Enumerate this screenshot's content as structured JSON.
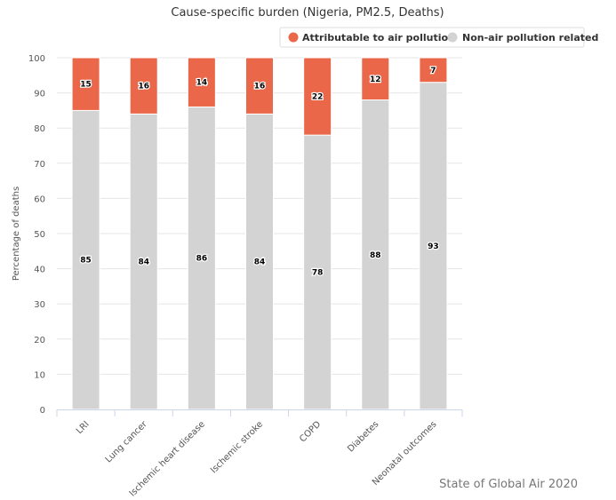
{
  "chart_data": {
    "type": "bar",
    "stacked": true,
    "title": "Cause-specific burden (Nigeria, PM2.5, Deaths)",
    "xlabel": "",
    "ylabel": "Percentage of deaths",
    "ylim": [
      0,
      100
    ],
    "yticks": [
      0,
      10,
      20,
      30,
      40,
      50,
      60,
      70,
      80,
      90,
      100
    ],
    "grid": true,
    "legend_position": "top-right",
    "categories": [
      "LRI",
      "Lung cancer",
      "Ischemic heart disease",
      "Ischemic stroke",
      "COPD",
      "Diabetes",
      "Neonatal outcomes"
    ],
    "series": [
      {
        "name": "Non-air pollution related",
        "color": "#d3d3d3",
        "values": [
          85,
          84,
          86,
          84,
          78,
          88,
          93
        ]
      },
      {
        "name": "Attributable to air pollution",
        "color": "#eb674a",
        "values": [
          15,
          16,
          14,
          16,
          22,
          12,
          7
        ]
      }
    ],
    "source": "State of Global Air 2020"
  }
}
